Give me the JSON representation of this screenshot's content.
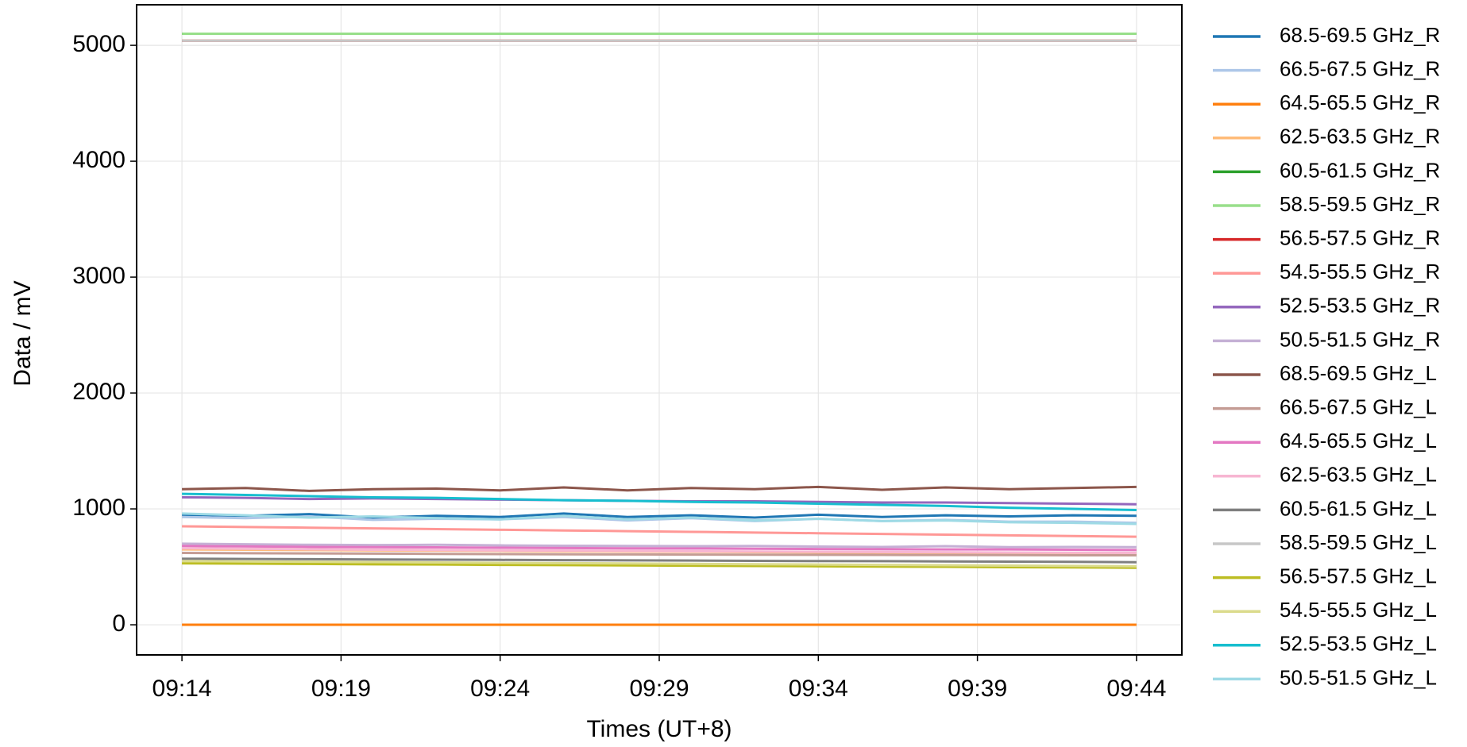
{
  "chart_data": {
    "type": "line",
    "x": [
      "09:14",
      "09:16",
      "09:18",
      "09:20",
      "09:22",
      "09:24",
      "09:26",
      "09:28",
      "09:30",
      "09:32",
      "09:34",
      "09:36",
      "09:38",
      "09:40",
      "09:42",
      "09:44"
    ],
    "xticks": [
      "09:14",
      "09:19",
      "09:24",
      "09:29",
      "09:34",
      "09:39",
      "09:44"
    ],
    "xlabel": "Times (UT+8)",
    "ylabel": "Data / mV",
    "ylim": [
      -260,
      5350
    ],
    "yticks": [
      0,
      1000,
      2000,
      3000,
      4000,
      5000
    ],
    "grid": true,
    "legend": "outside-right",
    "series": [
      {
        "name": "68.5-69.5 GHz_R",
        "color": "#1f77b4",
        "values": [
          950,
          940,
          955,
          925,
          940,
          930,
          960,
          930,
          945,
          925,
          950,
          930,
          945,
          935,
          945,
          940
        ]
      },
      {
        "name": "66.5-67.5 GHz_R",
        "color": "#aec7e8",
        "values": [
          930,
          920,
          935,
          905,
          915,
          910,
          930,
          900,
          920,
          895,
          915,
          895,
          905,
          890,
          890,
          880
        ]
      },
      {
        "name": "64.5-65.5 GHz_R",
        "color": "#ff7f0e",
        "values": [
          0,
          0,
          0,
          0,
          0,
          0,
          0,
          0,
          0,
          0,
          0,
          0,
          0,
          0,
          0,
          0
        ]
      },
      {
        "name": "62.5-63.5 GHz_R",
        "color": "#ffbb78",
        "values": [
          650,
          648,
          645,
          642,
          640,
          637,
          634,
          632,
          630,
          627,
          624,
          622,
          620,
          617,
          614,
          612
        ]
      },
      {
        "name": "60.5-61.5 GHz_R",
        "color": "#2ca02c",
        "values": [
          5100,
          5100,
          5100,
          5100,
          5100,
          5100,
          5100,
          5100,
          5100,
          5100,
          5100,
          5100,
          5100,
          5100,
          5100,
          5100
        ]
      },
      {
        "name": "58.5-59.5 GHz_R",
        "color": "#98df8a",
        "values": [
          5100,
          5100,
          5100,
          5100,
          5100,
          5100,
          5100,
          5100,
          5100,
          5100,
          5100,
          5100,
          5100,
          5100,
          5100,
          5100
        ]
      },
      {
        "name": "56.5-57.5 GHz_R",
        "color": "#d62728",
        "values": [
          5040,
          5040,
          5040,
          5040,
          5040,
          5040,
          5040,
          5040,
          5040,
          5040,
          5040,
          5040,
          5040,
          5040,
          5040,
          5040
        ]
      },
      {
        "name": "54.5-55.5 GHz_R",
        "color": "#ff9896",
        "values": [
          850,
          844,
          838,
          832,
          826,
          820,
          814,
          808,
          802,
          796,
          790,
          784,
          778,
          772,
          766,
          760
        ]
      },
      {
        "name": "52.5-53.5 GHz_R",
        "color": "#9467bd",
        "values": [
          1100,
          1095,
          1085,
          1090,
          1085,
          1080,
          1075,
          1070,
          1065,
          1065,
          1060,
          1055,
          1055,
          1050,
          1045,
          1040
        ]
      },
      {
        "name": "50.5-51.5 GHz_R",
        "color": "#c5b0d5",
        "values": [
          700,
          695,
          690,
          688,
          690,
          685,
          682,
          680,
          678,
          680,
          675,
          672,
          678,
          670,
          672,
          670
        ]
      },
      {
        "name": "68.5-69.5 GHz_L",
        "color": "#8c564b",
        "values": [
          1170,
          1180,
          1155,
          1170,
          1175,
          1160,
          1185,
          1160,
          1180,
          1170,
          1190,
          1165,
          1185,
          1170,
          1180,
          1190
        ]
      },
      {
        "name": "66.5-67.5 GHz_L",
        "color": "#c49c94",
        "values": [
          620,
          618,
          616,
          614,
          612,
          610,
          608,
          607,
          606,
          605,
          604,
          603,
          602,
          601,
          600,
          600
        ]
      },
      {
        "name": "64.5-65.5 GHz_L",
        "color": "#e377c2",
        "values": [
          680,
          676,
          672,
          670,
          668,
          665,
          662,
          660,
          658,
          656,
          654,
          652,
          650,
          650,
          648,
          645
        ]
      },
      {
        "name": "62.5-63.5 GHz_L",
        "color": "#f7b6d2",
        "values": [
          660,
          656,
          652,
          648,
          645,
          642,
          640,
          637,
          634,
          632,
          630,
          628,
          626,
          624,
          622,
          620
        ]
      },
      {
        "name": "60.5-61.5 GHz_L",
        "color": "#7f7f7f",
        "values": [
          570,
          568,
          566,
          564,
          562,
          560,
          558,
          556,
          554,
          552,
          550,
          549,
          547,
          545,
          543,
          540
        ]
      },
      {
        "name": "58.5-59.5 GHz_L",
        "color": "#c7c7c7",
        "values": [
          5040,
          5040,
          5040,
          5040,
          5040,
          5040,
          5040,
          5040,
          5040,
          5040,
          5040,
          5040,
          5040,
          5040,
          5040,
          5040
        ]
      },
      {
        "name": "56.5-57.5 GHz_L",
        "color": "#bcbd22",
        "values": [
          530,
          528,
          525,
          522,
          520,
          517,
          515,
          512,
          510,
          507,
          505,
          502,
          500,
          497,
          495,
          492
        ]
      },
      {
        "name": "54.5-55.5 GHz_L",
        "color": "#dbdb8d",
        "values": [
          550,
          547,
          544,
          541,
          538,
          535,
          532,
          529,
          526,
          523,
          520,
          517,
          514,
          511,
          508,
          505
        ]
      },
      {
        "name": "52.5-53.5 GHz_L",
        "color": "#17becf",
        "values": [
          1130,
          1120,
          1110,
          1100,
          1095,
          1085,
          1075,
          1070,
          1060,
          1055,
          1045,
          1035,
          1025,
          1010,
          1000,
          990
        ]
      },
      {
        "name": "50.5-51.5 GHz_L",
        "color": "#9edae5",
        "values": [
          960,
          945,
          925,
          935,
          920,
          910,
          940,
          910,
          925,
          900,
          915,
          895,
          900,
          885,
          880,
          870
        ]
      }
    ]
  }
}
